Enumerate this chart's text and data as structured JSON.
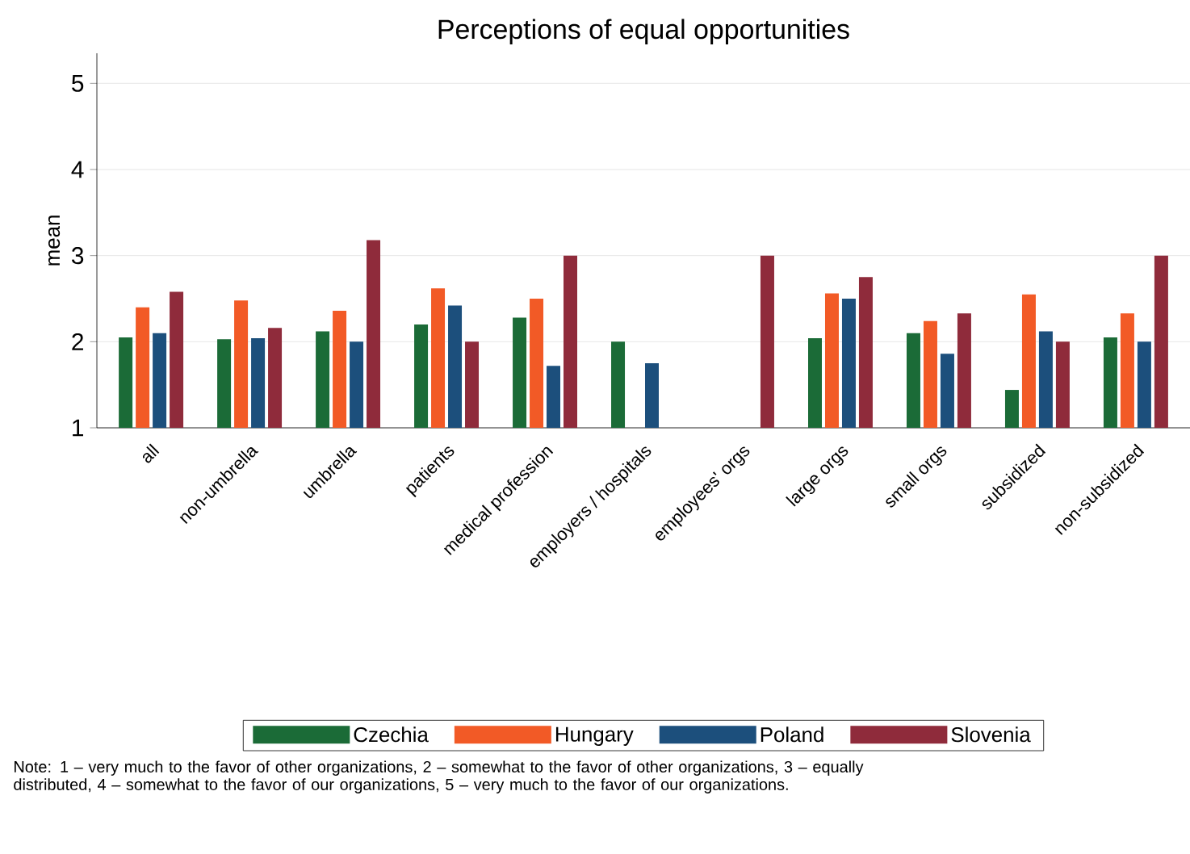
{
  "chart_data": {
    "type": "bar",
    "title": "Perceptions of equal opportunities",
    "ylabel": "mean",
    "categories": [
      "all",
      "non-umbrella",
      "umbrella",
      "patients",
      "medical profession",
      "employers / hospitals",
      "employees' orgs",
      "large orgs",
      "small orgs",
      "subsidized",
      "non-subsidized"
    ],
    "series": [
      {
        "name": "Czechia",
        "color": "#1b6b37",
        "values": [
          2.05,
          2.03,
          2.12,
          2.2,
          2.28,
          2.0,
          null,
          2.04,
          2.1,
          1.44,
          2.05
        ]
      },
      {
        "name": "Hungary",
        "color": "#f25a26",
        "values": [
          2.4,
          2.48,
          2.36,
          2.62,
          2.5,
          null,
          null,
          2.56,
          2.24,
          2.55,
          2.33
        ]
      },
      {
        "name": "Poland",
        "color": "#1c4f7c",
        "values": [
          2.1,
          2.04,
          2.0,
          2.42,
          1.72,
          1.75,
          null,
          2.5,
          1.86,
          2.12,
          2.0
        ]
      },
      {
        "name": "Slovenia",
        "color": "#8f2b3b",
        "values": [
          2.58,
          2.16,
          3.18,
          2.0,
          3.0,
          null,
          3.0,
          2.75,
          2.33,
          2.0,
          3.0
        ]
      }
    ],
    "ylim": [
      1,
      5.35
    ],
    "yticks": [
      1,
      2,
      3,
      4,
      5
    ],
    "grid": "y",
    "legend": "bottom",
    "annotations": [
      "Note: 1 – very much to the favor of other organizations, 2 – somewhat to the favor of other organizations, 3 – equally distributed, 4 – somewhat to the favor of our organizations, 5 – very much to the favor of our organizations."
    ]
  }
}
